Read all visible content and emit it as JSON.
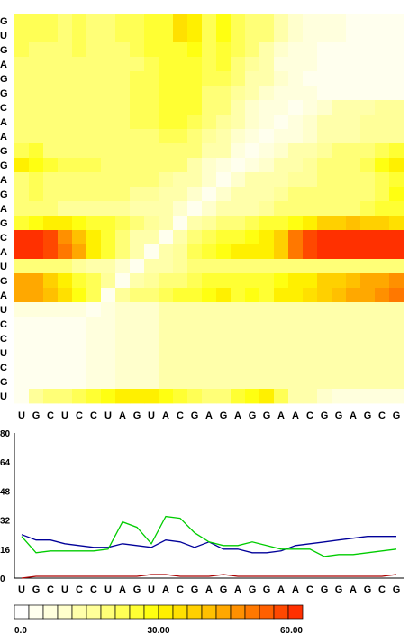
{
  "chart_data": [
    {
      "type": "heatmap",
      "title": "",
      "x_labels": [
        "U",
        "G",
        "C",
        "U",
        "C",
        "C",
        "U",
        "A",
        "G",
        "U",
        "A",
        "C",
        "G",
        "A",
        "G",
        "A",
        "G",
        "G",
        "A",
        "A",
        "C",
        "G",
        "G",
        "A",
        "G",
        "C",
        "G"
      ],
      "y_labels": [
        "G",
        "U",
        "G",
        "A",
        "G",
        "G",
        "C",
        "A",
        "A",
        "G",
        "G",
        "A",
        "G",
        "A",
        "G",
        "C",
        "A",
        "U",
        "G",
        "A",
        "U",
        "C",
        "C",
        "U",
        "C",
        "G",
        "U"
      ],
      "colorbar": {
        "min": 0,
        "max": 60,
        "tick_labels": [
          "0.0",
          "30.00",
          "60.00"
        ],
        "tick_values": [
          0,
          30,
          60
        ],
        "colors": [
          "#ffffff",
          "#ffffee",
          "#ffffdd",
          "#ffffcc",
          "#ffffaa",
          "#ffff99",
          "#ffff77",
          "#ffff55",
          "#ffff33",
          "#ffff11",
          "#fff000",
          "#ffe000",
          "#ffd000",
          "#ffc000",
          "#ffa800",
          "#ff9000",
          "#ff7800",
          "#ff6000",
          "#ff4800",
          "#ff3000"
        ]
      },
      "values": [
        [
          22,
          22,
          22,
          20,
          22,
          20,
          20,
          22,
          22,
          24,
          26,
          34,
          32,
          22,
          28,
          22,
          20,
          18,
          12,
          10,
          8,
          6,
          6,
          4,
          4,
          4,
          4
        ],
        [
          22,
          22,
          22,
          20,
          22,
          20,
          20,
          22,
          22,
          24,
          26,
          34,
          32,
          22,
          28,
          22,
          20,
          18,
          12,
          10,
          8,
          6,
          6,
          4,
          4,
          4,
          4
        ],
        [
          22,
          20,
          20,
          20,
          22,
          20,
          20,
          20,
          22,
          24,
          26,
          26,
          28,
          22,
          26,
          22,
          18,
          14,
          10,
          8,
          6,
          4,
          4,
          4,
          3,
          3,
          3
        ],
        [
          20,
          20,
          20,
          20,
          20,
          20,
          20,
          20,
          20,
          22,
          24,
          26,
          26,
          22,
          24,
          20,
          16,
          12,
          6,
          8,
          6,
          4,
          3,
          3,
          3,
          3,
          3
        ],
        [
          20,
          20,
          20,
          20,
          20,
          20,
          20,
          20,
          22,
          22,
          24,
          26,
          24,
          22,
          22,
          18,
          14,
          12,
          10,
          8,
          5,
          4,
          3,
          3,
          3,
          3,
          3
        ],
        [
          20,
          20,
          20,
          20,
          20,
          20,
          20,
          20,
          22,
          22,
          24,
          26,
          24,
          20,
          20,
          16,
          12,
          10,
          8,
          6,
          6,
          4,
          3,
          3,
          3,
          3,
          3
        ],
        [
          20,
          20,
          20,
          20,
          20,
          20,
          20,
          20,
          22,
          22,
          24,
          26,
          24,
          20,
          18,
          14,
          10,
          8,
          6,
          4,
          8,
          10,
          12,
          14,
          14,
          16,
          16
        ],
        [
          20,
          20,
          20,
          20,
          20,
          20,
          20,
          20,
          22,
          22,
          24,
          24,
          22,
          18,
          16,
          12,
          10,
          6,
          4,
          6,
          10,
          12,
          14,
          14,
          16,
          16,
          16
        ],
        [
          18,
          18,
          18,
          18,
          18,
          18,
          18,
          18,
          20,
          20,
          22,
          22,
          20,
          16,
          14,
          10,
          8,
          4,
          6,
          8,
          10,
          12,
          14,
          14,
          16,
          16,
          16
        ],
        [
          22,
          24,
          20,
          20,
          20,
          20,
          20,
          20,
          20,
          20,
          20,
          20,
          18,
          14,
          12,
          8,
          4,
          8,
          10,
          12,
          14,
          16,
          18,
          18,
          20,
          22,
          24
        ],
        [
          30,
          28,
          24,
          22,
          22,
          22,
          20,
          20,
          20,
          20,
          18,
          18,
          14,
          10,
          8,
          4,
          8,
          10,
          12,
          14,
          16,
          18,
          20,
          20,
          22,
          28,
          30
        ],
        [
          20,
          22,
          20,
          18,
          18,
          18,
          18,
          18,
          18,
          18,
          16,
          14,
          12,
          10,
          4,
          10,
          12,
          12,
          14,
          16,
          16,
          18,
          18,
          18,
          20,
          22,
          24
        ],
        [
          20,
          22,
          20,
          18,
          18,
          18,
          18,
          18,
          16,
          16,
          14,
          12,
          10,
          4,
          10,
          12,
          12,
          14,
          16,
          18,
          18,
          18,
          18,
          18,
          20,
          22,
          28
        ],
        [
          18,
          20,
          18,
          16,
          16,
          16,
          16,
          16,
          14,
          14,
          12,
          10,
          4,
          10,
          12,
          14,
          14,
          16,
          18,
          18,
          20,
          20,
          20,
          20,
          22,
          24,
          26
        ],
        [
          24,
          28,
          30,
          30,
          28,
          26,
          24,
          22,
          18,
          16,
          12,
          4,
          12,
          16,
          18,
          20,
          22,
          24,
          26,
          28,
          32,
          36,
          38,
          40,
          38,
          36,
          34
        ],
        [
          58,
          58,
          54,
          46,
          40,
          30,
          24,
          18,
          14,
          12,
          4,
          12,
          18,
          22,
          24,
          26,
          28,
          30,
          36,
          48,
          54,
          58,
          58,
          58,
          58,
          58,
          58
        ],
        [
          58,
          58,
          56,
          48,
          42,
          32,
          26,
          20,
          14,
          4,
          12,
          16,
          22,
          26,
          28,
          30,
          30,
          32,
          38,
          50,
          56,
          58,
          58,
          58,
          58,
          58,
          58
        ],
        [
          18,
          18,
          18,
          18,
          16,
          14,
          12,
          10,
          4,
          12,
          14,
          16,
          18,
          18,
          18,
          18,
          18,
          18,
          18,
          18,
          18,
          18,
          18,
          18,
          18,
          18,
          18
        ],
        [
          44,
          42,
          38,
          32,
          26,
          22,
          16,
          4,
          12,
          16,
          18,
          20,
          22,
          24,
          26,
          24,
          24,
          26,
          28,
          30,
          32,
          36,
          38,
          40,
          42,
          44,
          46
        ],
        [
          44,
          44,
          40,
          34,
          28,
          22,
          4,
          16,
          18,
          20,
          22,
          24,
          26,
          28,
          30,
          26,
          28,
          26,
          30,
          32,
          34,
          38,
          40,
          42,
          44,
          46,
          50
        ],
        [
          6,
          6,
          6,
          6,
          6,
          4,
          8,
          10,
          10,
          10,
          12,
          12,
          12,
          12,
          12,
          12,
          12,
          12,
          12,
          12,
          12,
          12,
          12,
          12,
          12,
          12,
          12
        ],
        [
          4,
          4,
          4,
          4,
          4,
          6,
          8,
          10,
          10,
          10,
          12,
          12,
          12,
          12,
          12,
          12,
          12,
          12,
          12,
          12,
          12,
          12,
          12,
          12,
          12,
          12,
          12
        ],
        [
          4,
          3,
          3,
          3,
          3,
          6,
          8,
          10,
          10,
          10,
          12,
          12,
          12,
          12,
          12,
          12,
          12,
          12,
          12,
          12,
          12,
          12,
          12,
          12,
          12,
          12,
          12
        ],
        [
          4,
          3,
          3,
          3,
          3,
          6,
          8,
          10,
          10,
          10,
          12,
          12,
          12,
          12,
          12,
          12,
          12,
          12,
          12,
          12,
          12,
          12,
          12,
          12,
          12,
          12,
          12
        ],
        [
          4,
          3,
          3,
          3,
          3,
          6,
          8,
          10,
          10,
          10,
          12,
          12,
          12,
          12,
          12,
          12,
          12,
          12,
          12,
          12,
          12,
          12,
          12,
          12,
          12,
          12,
          12
        ],
        [
          5,
          4,
          4,
          4,
          4,
          6,
          8,
          10,
          10,
          10,
          12,
          12,
          12,
          12,
          12,
          12,
          12,
          12,
          12,
          12,
          12,
          12,
          12,
          12,
          12,
          12,
          12
        ],
        [
          4,
          16,
          18,
          20,
          22,
          26,
          28,
          30,
          32,
          30,
          28,
          26,
          22,
          18,
          20,
          24,
          28,
          30,
          22,
          14,
          12,
          10,
          8,
          8,
          6,
          6,
          6
        ]
      ]
    },
    {
      "type": "line",
      "title": "",
      "categories": [
        "U",
        "G",
        "C",
        "U",
        "C",
        "C",
        "U",
        "A",
        "G",
        "U",
        "A",
        "C",
        "G",
        "A",
        "G",
        "A",
        "G",
        "G",
        "A",
        "A",
        "C",
        "G",
        "G",
        "A",
        "G",
        "C",
        "G"
      ],
      "ylim": [
        0,
        80
      ],
      "yticks": [
        0,
        16,
        32,
        48,
        64,
        80
      ],
      "ytick_labels": [
        "0",
        "16",
        "32",
        "48",
        "64",
        "80"
      ],
      "series": [
        {
          "color": "#000099",
          "values": [
            24,
            21,
            21,
            19,
            18,
            17,
            17,
            19,
            18,
            17,
            21,
            20,
            17,
            20,
            16,
            16,
            14,
            14,
            15,
            18,
            19,
            20,
            21,
            22,
            23,
            23,
            23
          ]
        },
        {
          "color": "#00cc00",
          "values": [
            23,
            14,
            15,
            15,
            15,
            15,
            16,
            31,
            28,
            19,
            34,
            33,
            25,
            20,
            18,
            18,
            20,
            18,
            16,
            16,
            16,
            12,
            13,
            13,
            14,
            15,
            16
          ]
        },
        {
          "color": "#aa0000",
          "values": [
            0,
            1,
            1,
            1,
            1,
            1,
            1,
            1,
            1,
            2,
            2,
            1,
            1,
            1,
            2,
            1,
            1,
            1,
            1,
            1,
            1,
            1,
            1,
            1,
            1,
            1,
            2
          ]
        }
      ]
    }
  ]
}
